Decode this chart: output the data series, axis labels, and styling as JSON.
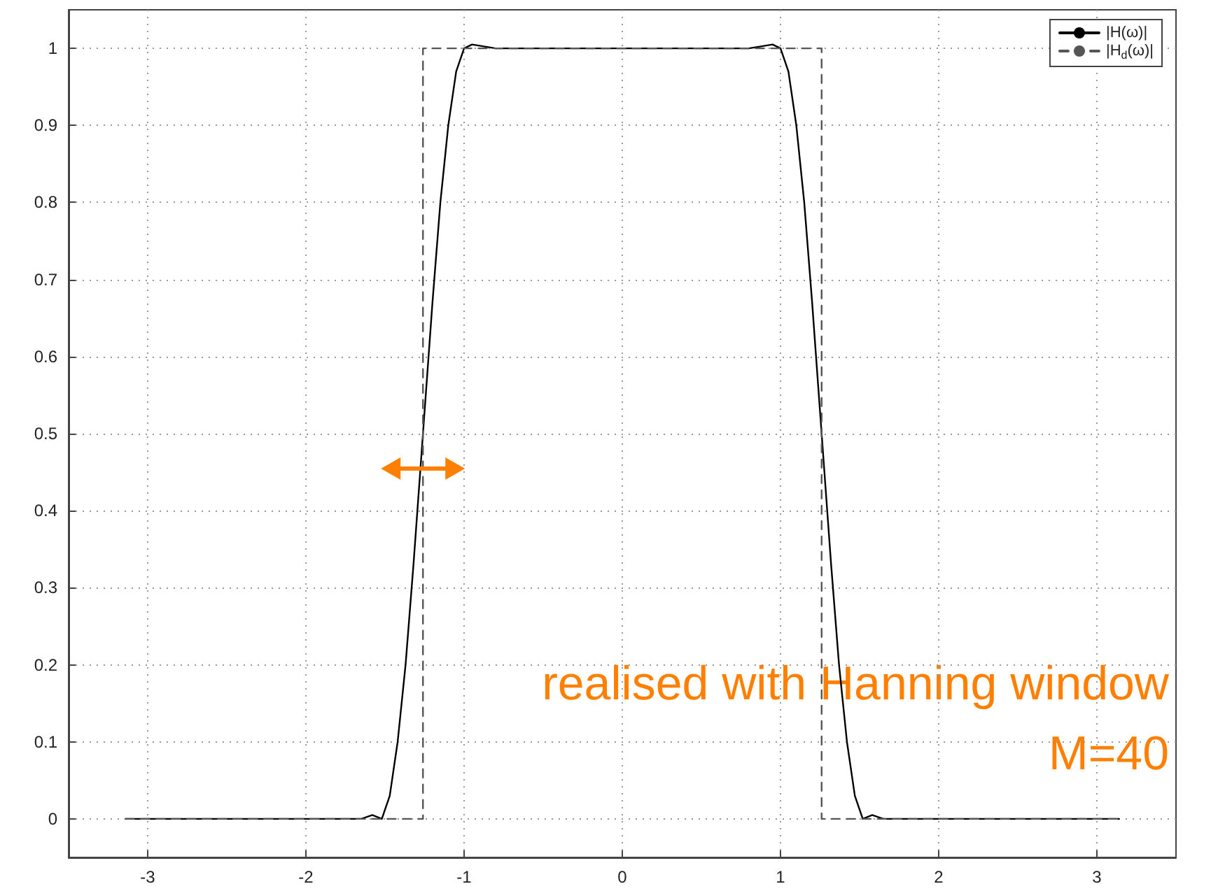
{
  "chart_data": {
    "type": "line",
    "xlim": [
      -3.5,
      3.5
    ],
    "ylim": [
      -0.05,
      1.05
    ],
    "xticks": [
      -3,
      -2,
      -1,
      0,
      1,
      2,
      3
    ],
    "yticks": [
      0,
      0.1,
      0.2,
      0.3,
      0.4,
      0.5,
      0.6,
      0.7,
      0.8,
      0.9,
      1
    ],
    "grid": true,
    "legend": "top right",
    "marker": "none",
    "series": [
      {
        "name": "|H(ω)|",
        "color": "#000000",
        "line_style": "solid",
        "x": [
          -3.14,
          -1.65,
          -1.58,
          -1.52,
          -1.47,
          -1.42,
          -1.37,
          -1.32,
          -1.26,
          -1.2,
          -1.15,
          -1.1,
          -1.05,
          -1.0,
          -0.95,
          -0.8,
          0,
          0.8,
          0.95,
          1.0,
          1.05,
          1.1,
          1.15,
          1.2,
          1.26,
          1.32,
          1.37,
          1.42,
          1.47,
          1.52,
          1.58,
          1.65,
          3.14
        ],
        "values": [
          0,
          0,
          0.005,
          0,
          0.03,
          0.1,
          0.2,
          0.33,
          0.5,
          0.67,
          0.8,
          0.9,
          0.97,
          1.0,
          1.005,
          1.0,
          1.0,
          1.0,
          1.005,
          1.0,
          0.97,
          0.9,
          0.8,
          0.67,
          0.5,
          0.33,
          0.2,
          0.1,
          0.03,
          0,
          0.005,
          0,
          0
        ]
      },
      {
        "name": "|H$_{d}$(ω)|",
        "color": "#555555",
        "line_style": "dashed",
        "x": [
          -3.14,
          -1.26,
          -1.26,
          1.26,
          1.26,
          3.14
        ],
        "values": [
          0,
          0,
          1,
          1,
          0,
          0
        ]
      }
    ],
    "annotations": [
      "realised with Hanning window",
      "M=40"
    ]
  }
}
